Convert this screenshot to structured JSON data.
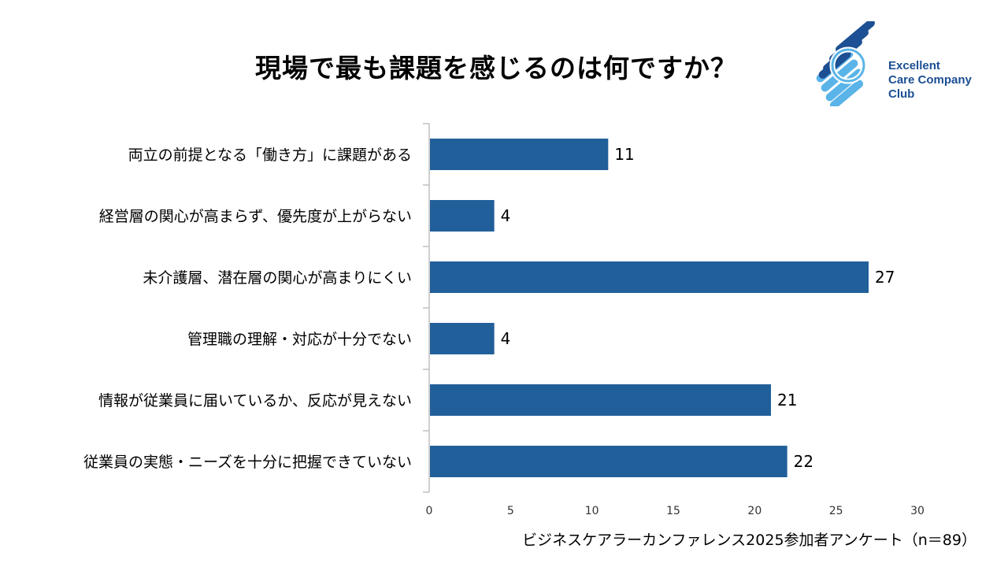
{
  "title": "現場で最も課題を感じるのは何ですか？",
  "logo": {
    "lines": [
      "Excellent",
      "Care Company",
      "Club"
    ]
  },
  "footnote": "ビジネスケアラーカンファレンス2025参加者アンケート（n＝89）",
  "colors": {
    "bar": "#215f9a",
    "axis": "#bfbfbf",
    "logo_dark": "#1c4f93",
    "logo_light": "#5ab4e8"
  },
  "chart_data": {
    "type": "bar",
    "orientation": "horizontal",
    "categories": [
      "両立の前提となる「働き方」に課題がある",
      "経営層の関心が高まらず、優先度が上がらない",
      "未介護層、潜在層の関心が高まりにくい",
      "管理職の理解・対応が十分でない",
      "情報が従業員に届いているか、反応が見えない",
      "従業員の実態・ニーズを十分に把握できていない"
    ],
    "values": [
      11,
      4,
      27,
      4,
      21,
      22
    ],
    "xlim": [
      0,
      30
    ],
    "xticks": [
      "0",
      "5",
      "10",
      "15",
      "20",
      "25",
      "30"
    ],
    "data_labels": true,
    "grid": false,
    "legend": "none"
  }
}
